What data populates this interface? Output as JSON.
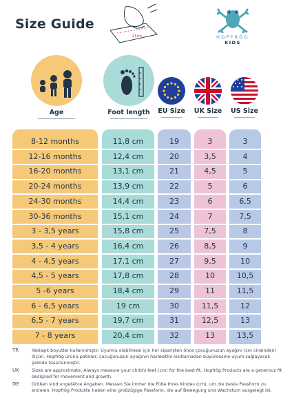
{
  "title": "Size Guide",
  "measure_label": "21cm",
  "brand": {
    "name": "HOPFRÖG",
    "sub": "KIDS"
  },
  "headers": {
    "age": "Age",
    "foot": "Foot length",
    "eu": "EU Size",
    "uk": "UK Size",
    "us": "US Size"
  },
  "icons": {
    "age": "children-icon",
    "foot": "footprint-ruler-icon",
    "eu": "eu-flag-icon",
    "uk": "uk-flag-icon",
    "us": "us-flag-icon"
  },
  "colors": {
    "age": "#f6c978",
    "foot": "#a9dbd9",
    "eu": "#b9c8e6",
    "uk": "#efc3d6",
    "us": "#b8c9e8"
  },
  "rows": [
    {
      "age": "8-12 months",
      "foot": "11,8 cm",
      "eu": "19",
      "uk": "3",
      "us": "3"
    },
    {
      "age": "12-16 months",
      "foot": "12,4 cm",
      "eu": "20",
      "uk": "3,5",
      "us": "4"
    },
    {
      "age": "16-20 months",
      "foot": "13,1 cm",
      "eu": "21",
      "uk": "4,5",
      "us": "5"
    },
    {
      "age": "20-24 months",
      "foot": "13,9 cm",
      "eu": "22",
      "uk": "5",
      "us": "6"
    },
    {
      "age": "24-30 months",
      "foot": "14,4 cm",
      "eu": "23",
      "uk": "6",
      "us": "6,5"
    },
    {
      "age": "30-36 months",
      "foot": "15,1 cm",
      "eu": "24",
      "uk": "7",
      "us": "7,5"
    },
    {
      "age": "3 - 3,5 years",
      "foot": "15,8 cm",
      "eu": "25",
      "uk": "7,5",
      "us": "8"
    },
    {
      "age": "3,5 - 4 years",
      "foot": "16,4 cm",
      "eu": "26",
      "uk": "8,5",
      "us": "9"
    },
    {
      "age": "4 - 4,5 years",
      "foot": "17,1 cm",
      "eu": "27",
      "uk": "9,5",
      "us": "10"
    },
    {
      "age": "4,5 - 5 years",
      "foot": "17,8 cm",
      "eu": "28",
      "uk": "10",
      "us": "10,5"
    },
    {
      "age": "5 -6 years",
      "foot": "18,4 cm",
      "eu": "29",
      "uk": "11",
      "us": "11,5"
    },
    {
      "age": "6 - 6,5 years",
      "foot": "19 cm",
      "eu": "30",
      "uk": "11,5",
      "us": "12"
    },
    {
      "age": "6,5 - 7 years",
      "foot": "19,7 cm",
      "eu": "31",
      "uk": "12,5",
      "us": "13"
    },
    {
      "age": "7 - 8 years",
      "foot": "20,4 cm",
      "eu": "32",
      "uk": "13",
      "us": "13,5"
    }
  ],
  "notes": [
    {
      "code": "TR",
      "text": "Yaklaşık boyutlar kullanılmıştır. Uyumlu olabilmesi için her siparişten önce çocuğunuzun ayağını (cm cinsinden) ölçün. Hopfrög ürünü patikler, çocuğunuzun ayağının hareketini kısıtlamadan büyümesine uyum sağlayacak şekilde tasarlanmıştır."
    },
    {
      "code": "UK",
      "text": "Sizes are approximate. Always measure your child's feet (cm) for the best fit. Hopfrög Products are a generous fit designed for movement and growth."
    },
    {
      "code": "DE",
      "text": "Größen sind ungefähre Angaben. Messen Sie immer die Füße Ihres Kindes (cm), um die beste Passform zu erzielen. Hopfrög Produkte haben eine großzügige Passform, die auf Bewegung und Wachstum ausgelegt ist."
    }
  ]
}
